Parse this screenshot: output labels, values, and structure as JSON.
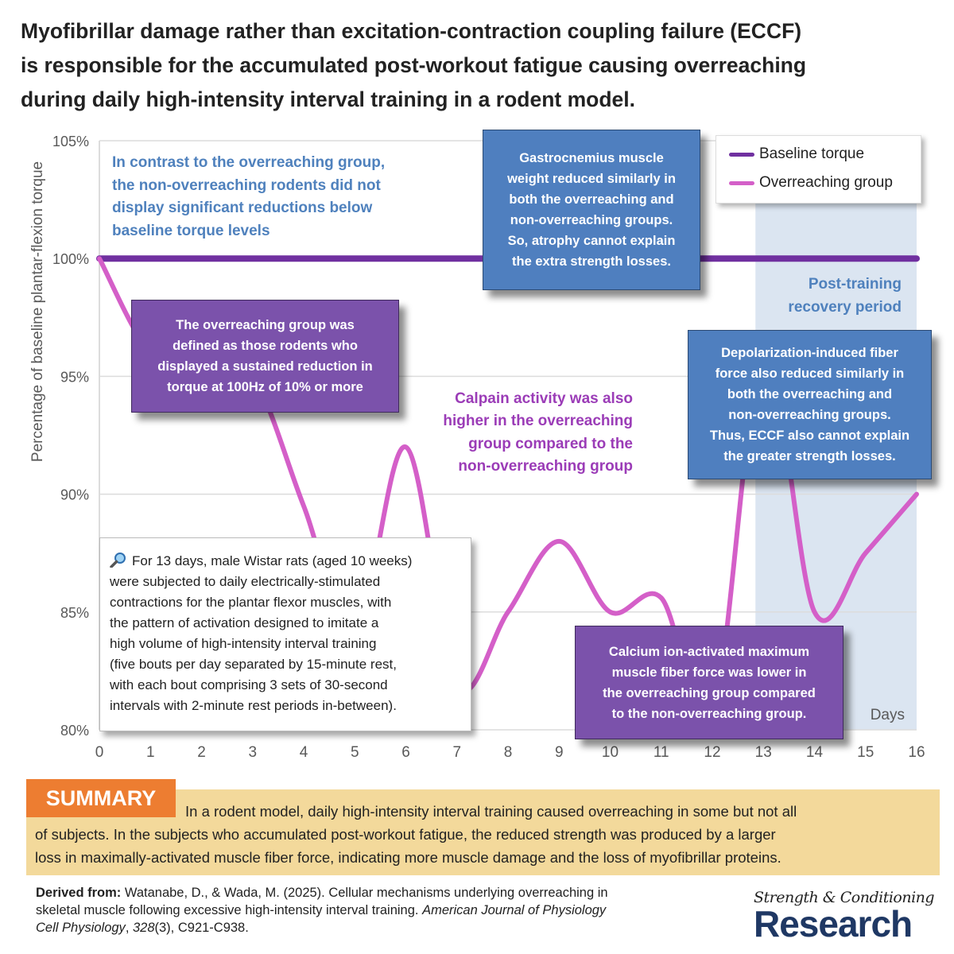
{
  "title_lines": [
    "Myofibrillar damage rather than excitation-contraction coupling failure (ECCF)",
    "is responsible for the accumulated post-workout fatigue causing overreaching",
    "during daily high-intensity interval training in a rodent model."
  ],
  "chart_data": {
    "type": "line",
    "ylabel": "Percentage of baseline plantar-flexion torque",
    "xlabel": "Days",
    "x": [
      0,
      1,
      2,
      3,
      4,
      5,
      6,
      7,
      8,
      9,
      10,
      11,
      12,
      13,
      14,
      15,
      16
    ],
    "x_tick_labels": [
      "0",
      "1",
      "2",
      "3",
      "4",
      "5",
      "6",
      "7",
      "8",
      "9",
      "10",
      "11",
      "12",
      "13",
      "14",
      "15",
      "16"
    ],
    "y_ticks": [
      105,
      100,
      95,
      90,
      85,
      80
    ],
    "y_tick_labels": [
      "105%",
      "100%",
      "95%",
      "90%",
      "85%",
      "80%"
    ],
    "ylim": [
      80,
      105
    ],
    "xlim": [
      0,
      16
    ],
    "grid": true,
    "legend_position": "top-right",
    "series": [
      {
        "name": "Baseline torque",
        "color": "#7030a0",
        "values": [
          100,
          100,
          100,
          100,
          100,
          100,
          100,
          100,
          100,
          100,
          100,
          100,
          100,
          100,
          100,
          100,
          100
        ]
      },
      {
        "name": "Overreaching group",
        "color": "#d45fc8",
        "values": [
          100,
          96,
          95.5,
          95,
          89.5,
          84,
          92,
          81.9,
          85,
          88,
          85,
          85.6,
          80.6,
          96,
          85,
          87.5,
          90
        ]
      }
    ],
    "shaded_region": {
      "x_from": 13,
      "x_to": 16,
      "color": "#dbe5f1",
      "label_lines": [
        "Post-training",
        "recovery period"
      ]
    }
  },
  "annotations": {
    "non_overreaching": [
      "In contrast to the overreaching group,",
      "the non-overreaching rodents did not",
      "display significant reductions below",
      "baseline torque levels"
    ],
    "gastrocnemius": [
      "Gastrocnemius muscle",
      "weight reduced similarly in",
      "both the overreaching and",
      "non-overreaching groups.",
      "So, atrophy cannot explain",
      "the extra strength losses."
    ],
    "definition": [
      "The overreaching group was",
      "defined as those rodents who",
      "displayed a sustained reduction in",
      "torque at 100Hz of 10% or more"
    ],
    "calpain": [
      "Calpain activity was also",
      "higher in the overreaching",
      "group compared to the",
      "non-overreaching group"
    ],
    "depolarization": [
      "Depolarization-induced fiber",
      "force also reduced similarly in",
      "both the overreaching and",
      "non-overreaching groups.",
      "Thus, ECCF also cannot explain",
      "the greater strength losses."
    ],
    "calcium": [
      "Calcium ion-activated maximum",
      "muscle fiber force was lower in",
      "the overreaching group compared",
      "to the non-overreaching group."
    ]
  },
  "methods": {
    "icon": "magnifier-icon",
    "lines": [
      "For 13 days, male Wistar rats (aged 10 weeks)",
      "were subjected to daily electrically-stimulated",
      "contractions for the plantar flexor muscles, with",
      "the pattern of activation designed to imitate a",
      "high volume of high-intensity interval training",
      "(five bouts per day separated by 15-minute rest,",
      "with each bout comprising 3 sets of 30-second",
      "intervals with 2-minute rest periods in-between)."
    ]
  },
  "summary": {
    "label": "SUMMARY",
    "lines": [
      "In a rodent model, daily high-intensity interval training caused overreaching in some but not all",
      "of subjects. In the subjects who accumulated post-workout fatigue, the reduced strength was produced by a larger",
      "loss in maximally-activated muscle fiber force, indicating more muscle damage and the loss of myofibrillar proteins."
    ]
  },
  "citation": {
    "prefix": "Derived from:",
    "line1": " Watanabe, D., & Wada, M. (2025). Cellular mechanisms underlying overreaching in",
    "line2a": "skeletal muscle following excessive high-intensity interval training. ",
    "journal1": "American Journal of Physiology",
    "journal2": "Cell Physiology",
    "rest_a": ", ",
    "volume": "328",
    "rest_b": "(3), C921-C938."
  },
  "logo": {
    "line1": "Strength & Conditioning",
    "line2": "Research"
  },
  "colors": {
    "annotation_blue": "#4f81bd",
    "annotation_purple": "#9b3cb7",
    "box_blue": "#4f7fbf",
    "box_purple": "#7b52ab",
    "summary_bg": "#f3d99b",
    "summary_label": "#ed7d31"
  }
}
